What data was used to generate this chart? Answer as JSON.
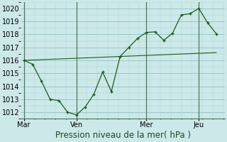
{
  "title": "Pression niveau de la mer( hPa )",
  "bg_color": "#cce8e8",
  "grid_color_major": "#88bbbb",
  "grid_color_minor": "#aad4d4",
  "line_color": "#1a5c1a",
  "ylim": [
    1011.5,
    1020.5
  ],
  "yticks": [
    1012,
    1013,
    1014,
    1015,
    1016,
    1017,
    1018,
    1019,
    1020
  ],
  "xtick_labels": [
    "Mar",
    "Ven",
    "Mer",
    "Jeu"
  ],
  "xtick_positions": [
    0,
    30,
    70,
    100
  ],
  "xlim": [
    -2,
    115
  ],
  "vline_positions": [
    0,
    30,
    70,
    100
  ],
  "line1_x": [
    0,
    5,
    10,
    15,
    20,
    25,
    30,
    35,
    40,
    45,
    50,
    55,
    60,
    65,
    70,
    75,
    80,
    85,
    90,
    95,
    100,
    105,
    110
  ],
  "line1_y": [
    1016.0,
    1015.7,
    1014.4,
    1013.0,
    1012.9,
    1012.0,
    1011.8,
    1012.4,
    1013.4,
    1015.1,
    1013.6,
    1016.3,
    1017.0,
    1017.7,
    1018.15,
    1018.2,
    1017.55,
    1018.1,
    1019.5,
    1019.6,
    1020.0,
    1018.9,
    1018.05
  ],
  "line1_marker_x": [
    0,
    5,
    10,
    15,
    20,
    25,
    30,
    35,
    40,
    45,
    50,
    55,
    60,
    65,
    70,
    75,
    80,
    85,
    90,
    95,
    100,
    105,
    110
  ],
  "line2_x": [
    0,
    110
  ],
  "line2_y": [
    1016.0,
    1016.6
  ],
  "xlabel_fontsize": 8.5,
  "tick_fontsize": 7,
  "xlabel_color": "#1a4a1a"
}
